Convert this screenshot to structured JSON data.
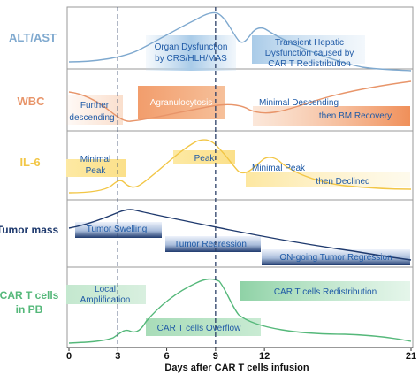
{
  "x_axis": {
    "label": "Days after CAR T cells infusion",
    "ticks": [
      {
        "value": 0,
        "label": "0"
      },
      {
        "value": 3,
        "label": "3"
      },
      {
        "value": 6,
        "label": "6"
      },
      {
        "value": 9,
        "label": "9"
      },
      {
        "value": 12,
        "label": "12"
      },
      {
        "value": 21,
        "label": "21"
      }
    ],
    "markers": [
      3,
      9
    ]
  },
  "colors": {
    "alt": "#7fa9cf",
    "wbc": "#e8956a",
    "il6": "#f2c646",
    "tumor": "#1f3a6e",
    "cart": "#55b87a",
    "dashed": "#2b3f66",
    "note_text": "#1f5aa6"
  },
  "panels": [
    {
      "id": "alt",
      "label": "ALT/AST",
      "notes": [
        {
          "id": "organ",
          "lines": [
            "Organ Dysfunction",
            "by CRS/HLH/MAS"
          ]
        },
        {
          "id": "hepatic",
          "lines": [
            "Transient Hepatic",
            "Dysfunction caused by",
            "CAR T Redistribution"
          ]
        }
      ]
    },
    {
      "id": "wbc",
      "label": "WBC",
      "notes": [
        {
          "id": "further",
          "lines": [
            "Further",
            "descending"
          ]
        },
        {
          "id": "agran",
          "lines": [
            "Agranulocytosis"
          ]
        },
        {
          "id": "minimal-desc",
          "lines": [
            "Minimal Descending"
          ]
        },
        {
          "id": "bm",
          "lines": [
            "then BM Recovery"
          ]
        }
      ]
    },
    {
      "id": "il6",
      "label": "IL-6",
      "notes": [
        {
          "id": "minimal-peak-1",
          "lines": [
            "Minimal",
            "Peak"
          ]
        },
        {
          "id": "peak",
          "lines": [
            "Peak"
          ]
        },
        {
          "id": "minimal-peak-2",
          "lines": [
            "Minimal Peak"
          ]
        },
        {
          "id": "declined",
          "lines": [
            "then Declined"
          ]
        }
      ]
    },
    {
      "id": "tumor",
      "label": "Tumor mass",
      "notes": [
        {
          "id": "swelling",
          "lines": [
            "Tumor Swelling"
          ]
        },
        {
          "id": "regression",
          "lines": [
            "Tumor Regression"
          ]
        },
        {
          "id": "ongoing",
          "lines": [
            "ON-going Tumor Regression"
          ]
        }
      ]
    },
    {
      "id": "cart",
      "label": "CAR T cells\nin PB",
      "notes": [
        {
          "id": "local",
          "lines": [
            "Local",
            "Amplification"
          ]
        },
        {
          "id": "overflow",
          "lines": [
            "CAR T cells Overflow"
          ]
        },
        {
          "id": "redistribution",
          "lines": [
            "CAR T cells Redistribution"
          ]
        }
      ]
    }
  ]
}
